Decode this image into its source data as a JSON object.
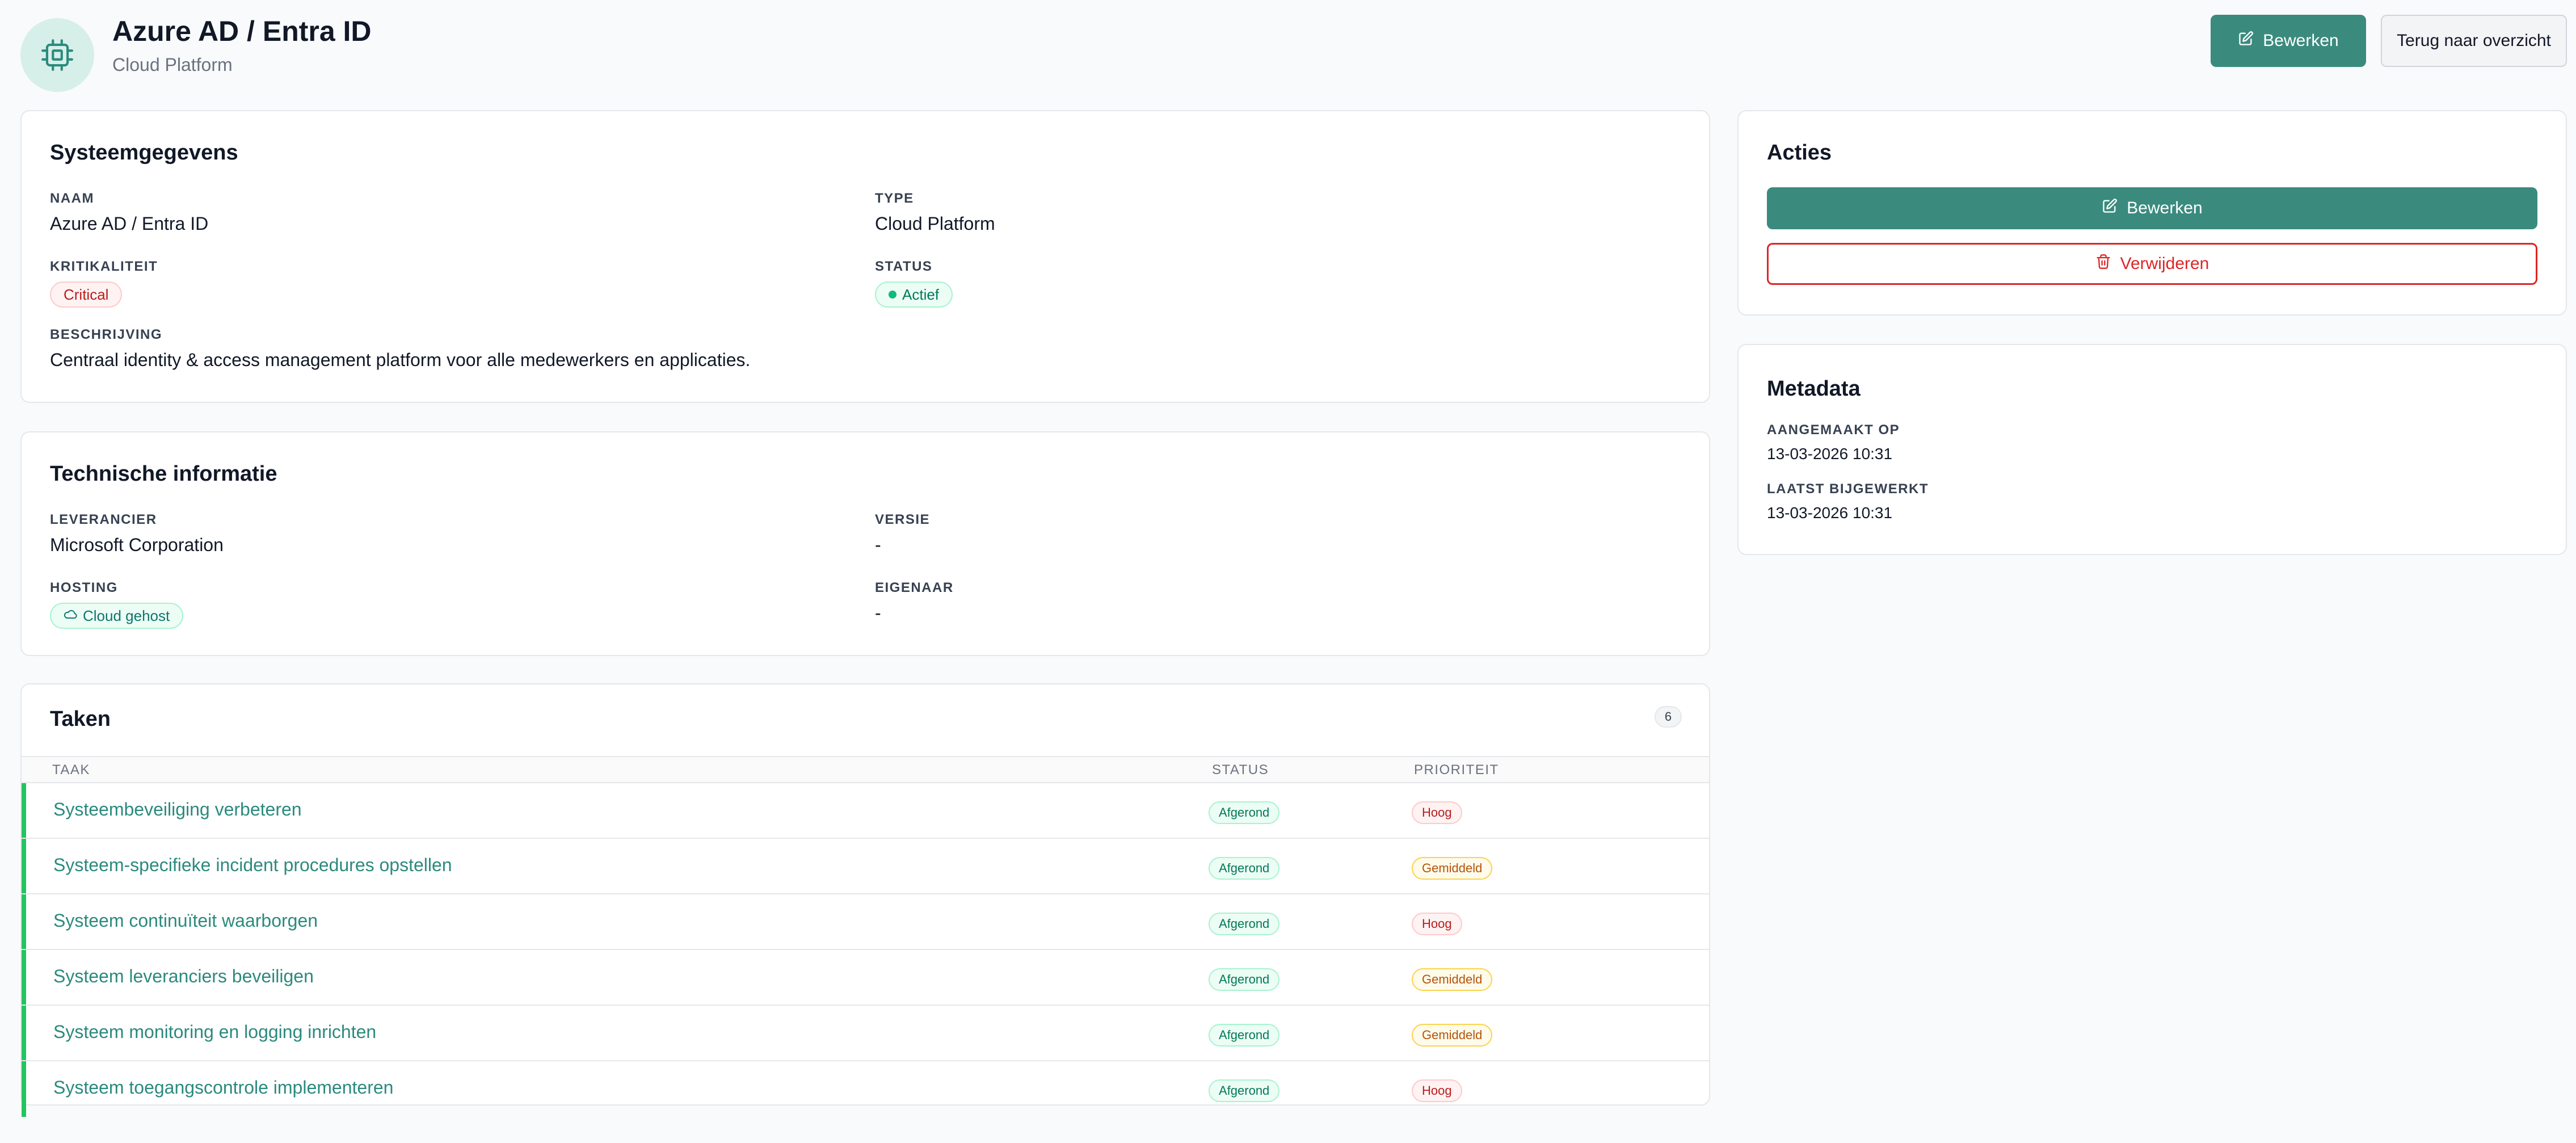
{
  "header": {
    "icon": "cpu-chip-icon",
    "title": "Azure AD / Entra ID",
    "subtitle": "Cloud Platform",
    "edit_label": "Bewerken",
    "back_label": "Terug naar overzicht"
  },
  "system": {
    "title": "Systeemgegevens",
    "name_label": "NAAM",
    "name_value": "Azure AD / Entra ID",
    "type_label": "TYPE",
    "type_value": "Cloud Platform",
    "criticality_label": "KRITIKALITEIT",
    "criticality_value": "Critical",
    "status_label": "STATUS",
    "status_value": "Actief",
    "description_label": "BESCHRIJVING",
    "description_value": "Centraal identity & access management platform voor alle medewerkers en applicaties."
  },
  "tech": {
    "title": "Technische informatie",
    "supplier_label": "LEVERANCIER",
    "supplier_value": "Microsoft Corporation",
    "version_label": "VERSIE",
    "version_value": "-",
    "hosting_label": "HOSTING",
    "hosting_value": "Cloud gehost",
    "owner_label": "EIGENAAR",
    "owner_value": "-"
  },
  "tasks": {
    "title": "Taken",
    "count": "6",
    "col_task": "TAAK",
    "col_status": "STATUS",
    "col_priority": "PRIORITEIT",
    "rows": [
      {
        "name": "Systeembeveiliging verbeteren",
        "status": "Afgerond",
        "priority": "Hoog"
      },
      {
        "name": "Systeem-specifieke incident procedures opstellen",
        "status": "Afgerond",
        "priority": "Gemiddeld"
      },
      {
        "name": "Systeem continuïteit waarborgen",
        "status": "Afgerond",
        "priority": "Hoog"
      },
      {
        "name": "Systeem leveranciers beveiligen",
        "status": "Afgerond",
        "priority": "Gemiddeld"
      },
      {
        "name": "Systeem monitoring en logging inrichten",
        "status": "Afgerond",
        "priority": "Gemiddeld"
      },
      {
        "name": "Systeem toegangscontrole implementeren",
        "status": "Afgerond",
        "priority": "Hoog"
      }
    ]
  },
  "actions": {
    "title": "Acties",
    "edit_label": "Bewerken",
    "delete_label": "Verwijderen"
  },
  "metadata": {
    "title": "Metadata",
    "created_label": "AANGEMAAKT OP",
    "created_value": "13-03-2026 10:31",
    "updated_label": "LAATST BIJGEWERKT",
    "updated_value": "13-03-2026 10:31"
  },
  "colors": {
    "accent": "#3a8b7e",
    "danger": "#dc2626",
    "success": "#22c55e"
  }
}
